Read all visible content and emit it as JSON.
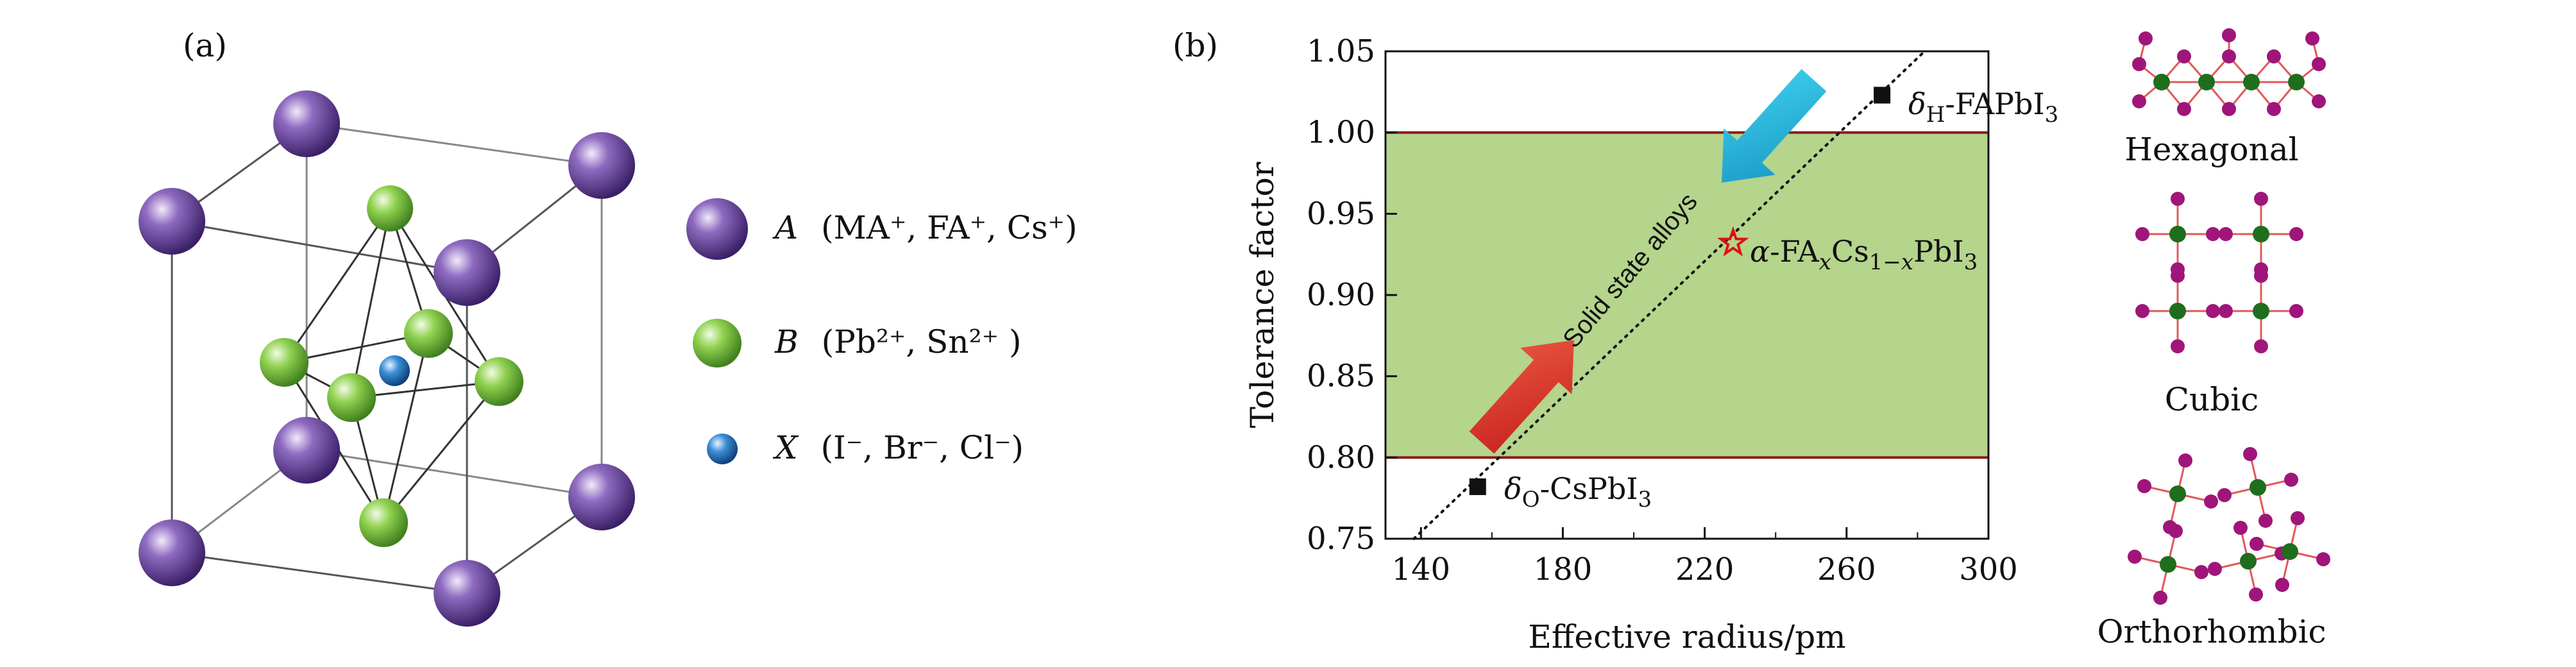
{
  "panel_a": {
    "label": "(a)",
    "legend": [
      {
        "symbol": "A",
        "species": "(MA⁺, FA⁺, Cs⁺)",
        "color": "#5b3a8c"
      },
      {
        "symbol": "B",
        "species": "(Pb²⁺, Sn²⁺ )",
        "color": "#7cc142"
      },
      {
        "symbol": "X",
        "species": "(I⁻, Br⁻, Cl⁻)",
        "color": "#1f6fb5"
      }
    ]
  },
  "panel_b": {
    "label": "(b)",
    "points": [
      {
        "label": "δH-FAPbI3",
        "display": "δ_H-FAPbI₃",
        "x": 270,
        "y": 1.023,
        "marker": "square"
      },
      {
        "label": "α-FAxCs1-xPbI3",
        "display": "α-FA_xCs_{1−x}PbI₃",
        "x": 228,
        "y": 0.932,
        "marker": "star"
      },
      {
        "label": "δO-CsPbI3",
        "display": "δ_O-CsPbI₃",
        "x": 156,
        "y": 0.782,
        "marker": "square"
      }
    ],
    "arrow_text": "Solid state alloys"
  },
  "structures": [
    {
      "name": "Hexagonal"
    },
    {
      "name": "Cubic"
    },
    {
      "name": "Orthorhombic"
    }
  ],
  "colors": {
    "purple": "#5b3a8c",
    "green": "#7cc142",
    "blue": "#1f6fb5",
    "band": "#b5d48c",
    "band_line": "#8b1a1a",
    "red_arrow": "#d63030",
    "cyan_arrow": "#22b5d8",
    "node_magenta": "#a0157a",
    "node_green": "#1e6e1e",
    "bond": "#e05a5a"
  },
  "chart_data": {
    "type": "scatter",
    "title": "",
    "xlabel": "Effective radius/pm",
    "ylabel": "Tolerance factor",
    "xlim": [
      130,
      300
    ],
    "ylim": [
      0.75,
      1.05
    ],
    "xticks": [
      140,
      180,
      220,
      260,
      300
    ],
    "yticks": [
      0.75,
      0.8,
      0.85,
      0.9,
      0.95,
      1.0,
      1.05
    ],
    "xtick_labels": [
      "140",
      "180",
      "220",
      "260",
      "300"
    ],
    "ytick_labels": [
      "0.75",
      "0.80",
      "0.85",
      "0.90",
      "0.95",
      "1.00",
      "1.05"
    ],
    "band": {
      "y_low": 0.8,
      "y_high": 1.0
    },
    "trend_line": {
      "x": [
        138,
        282
      ],
      "y": [
        0.75,
        1.05
      ]
    },
    "series": [
      {
        "name": "δH-FAPbI3",
        "x": [
          270
        ],
        "y": [
          1.023
        ]
      },
      {
        "name": "α-FAxCs1-xPbI3",
        "x": [
          228
        ],
        "y": [
          0.932
        ]
      },
      {
        "name": "δO-CsPbI3",
        "x": [
          156
        ],
        "y": [
          0.782
        ]
      }
    ]
  }
}
